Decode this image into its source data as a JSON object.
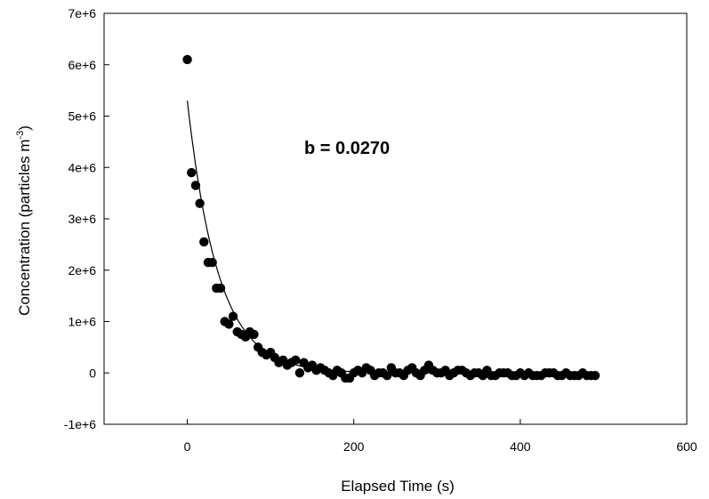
{
  "chart_data": {
    "type": "scatter",
    "xlabel": "Elapsed Time (s)",
    "ylabel_main": "Concentration (particles m",
    "ylabel_sup": "-3",
    "ylabel_close": ")",
    "annotation": "b = 0.0270",
    "xlim": [
      -100,
      600
    ],
    "ylim": [
      -1000000,
      7000000
    ],
    "x_ticks": [
      0,
      200,
      400,
      600
    ],
    "x_tick_labels": [
      "0",
      "200",
      "400",
      "600"
    ],
    "y_ticks": [
      -1000000,
      0,
      1000000,
      2000000,
      3000000,
      4000000,
      5000000,
      6000000,
      7000000
    ],
    "y_tick_labels": [
      "-1e+6",
      "0",
      "1e+6",
      "2e+6",
      "3e+6",
      "4e+6",
      "5e+6",
      "6e+6",
      "7e+6"
    ],
    "grid": false,
    "marker_color": "#000000",
    "series": [
      {
        "type": "scatter",
        "x": [
          0,
          5,
          10,
          15,
          20,
          25,
          30,
          35,
          40,
          45,
          50,
          55,
          60,
          65,
          70,
          75,
          80,
          85,
          90,
          95,
          100,
          105,
          110,
          115,
          120,
          125,
          130,
          135,
          140,
          145,
          150,
          155,
          160,
          165,
          170,
          175,
          180,
          185,
          190,
          195,
          200,
          205,
          210,
          215,
          220,
          225,
          230,
          235,
          240,
          245,
          250,
          255,
          260,
          265,
          270,
          275,
          280,
          285,
          290,
          295,
          300,
          305,
          310,
          315,
          320,
          325,
          330,
          335,
          340,
          345,
          350,
          355,
          360,
          365,
          370,
          375,
          380,
          385,
          390,
          395,
          400,
          405,
          410,
          415,
          420,
          425,
          430,
          435,
          440,
          445,
          450,
          455,
          460,
          465,
          470,
          475,
          480,
          485,
          490
        ],
        "y": [
          6100000,
          3900000,
          3650000,
          3300000,
          2550000,
          2150000,
          2150000,
          1650000,
          1650000,
          1000000,
          950000,
          1100000,
          800000,
          750000,
          700000,
          800000,
          750000,
          500000,
          400000,
          350000,
          400000,
          300000,
          200000,
          250000,
          150000,
          200000,
          250000,
          0,
          200000,
          100000,
          150000,
          50000,
          100000,
          50000,
          0,
          -50000,
          50000,
          0,
          -100000,
          -100000,
          0,
          50000,
          0,
          100000,
          50000,
          -50000,
          0,
          0,
          -50000,
          100000,
          0,
          0,
          -50000,
          50000,
          100000,
          0,
          -50000,
          50000,
          150000,
          50000,
          0,
          0,
          50000,
          -50000,
          0,
          50000,
          50000,
          0,
          -50000,
          0,
          0,
          -50000,
          50000,
          -50000,
          -50000,
          0,
          0,
          0,
          -50000,
          -50000,
          0,
          -50000,
          0,
          -50000,
          -50000,
          -50000,
          0,
          0,
          0,
          -50000,
          -50000,
          0,
          -50000,
          -50000,
          -50000,
          0,
          -50000,
          -50000,
          -50000
        ]
      },
      {
        "type": "line",
        "function": "exponential decay fit",
        "a": 5300000,
        "b": 0.027,
        "x_range": [
          0,
          490
        ]
      }
    ]
  }
}
